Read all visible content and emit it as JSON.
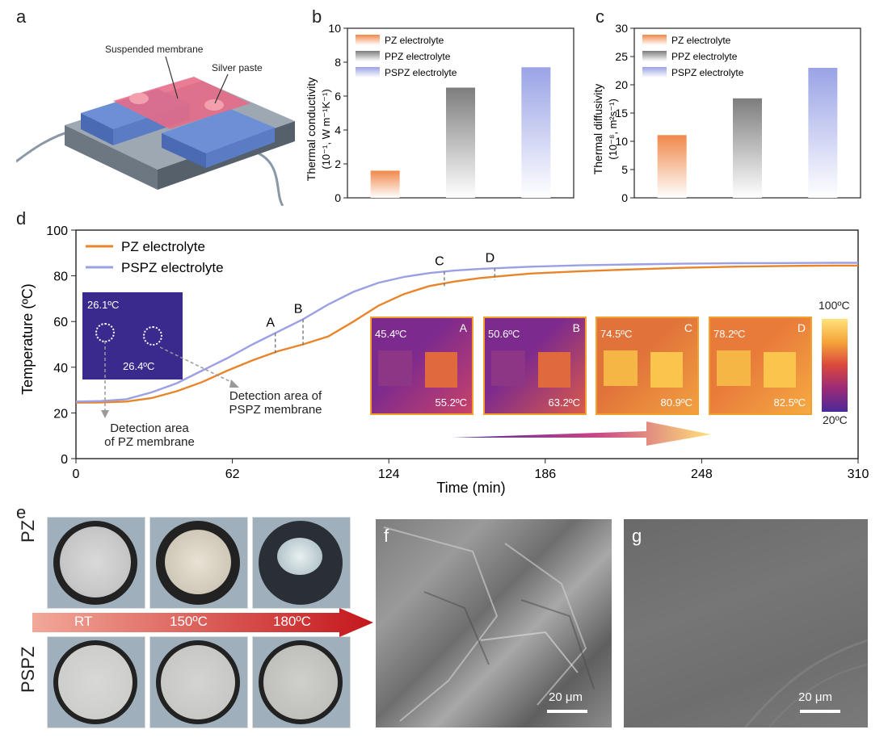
{
  "panels": {
    "a": "a",
    "b": "b",
    "c": "c",
    "d": "d",
    "e": "e",
    "f": "f",
    "g": "g"
  },
  "panel_a": {
    "membrane_label": "Suspended membrane",
    "paste_label": "Silver paste"
  },
  "chart_data": [
    {
      "id": "b",
      "type": "bar",
      "categories": [
        "PZ electrolyte",
        "PPZ electrolyte",
        "PSPZ electrolyte"
      ],
      "values": [
        1.6,
        6.5,
        7.7
      ],
      "ylabel_line1": "Thermal conductivity",
      "ylabel_line2": "(10⁻¹, W m⁻¹K⁻¹)",
      "ylim": [
        0,
        10
      ],
      "yticks": [
        0,
        2,
        4,
        6,
        8,
        10
      ],
      "colors": [
        "#f0884a",
        "#7d7d7d",
        "#9aa3e6"
      ],
      "legend": "top-left"
    },
    {
      "id": "c",
      "type": "bar",
      "categories": [
        "PZ electrolyte",
        "PPZ electrolyte",
        "PSPZ electrolyte"
      ],
      "values": [
        11.1,
        17.6,
        23.0
      ],
      "ylabel_line1": "Thermal diffusivity",
      "ylabel_line2": "(10⁻⁸, m²s⁻¹)",
      "ylim": [
        0,
        30
      ],
      "yticks": [
        0,
        5,
        10,
        15,
        20,
        25,
        30
      ],
      "colors": [
        "#f0884a",
        "#7d7d7d",
        "#9aa3e6"
      ],
      "legend": "top-left"
    },
    {
      "id": "d",
      "type": "line",
      "xlabel": "Time (min)",
      "ylabel": "Temperature (ºC)",
      "xlim": [
        0,
        310
      ],
      "ylim": [
        0,
        100
      ],
      "xticks": [
        0,
        62,
        124,
        186,
        248,
        310
      ],
      "yticks": [
        0,
        20,
        40,
        60,
        80,
        100
      ],
      "series": [
        {
          "name": "PZ electrolyte",
          "color": "#e8852a",
          "x": [
            0,
            10,
            20,
            30,
            40,
            50,
            60,
            70,
            80,
            90,
            100,
            110,
            120,
            130,
            140,
            150,
            160,
            170,
            180,
            200,
            220,
            240,
            260,
            280,
            300,
            310
          ],
          "y": [
            24.5,
            24.6,
            25,
            26.5,
            29.5,
            33.5,
            38.5,
            43,
            47,
            50,
            53.5,
            60,
            67,
            72,
            75.5,
            77.5,
            79,
            80,
            81,
            82,
            82.8,
            83.5,
            84,
            84.3,
            84.5,
            84.5
          ]
        },
        {
          "name": "PSPZ electrolyte",
          "color": "#9aa0e3",
          "x": [
            0,
            10,
            20,
            30,
            40,
            50,
            60,
            70,
            80,
            90,
            100,
            110,
            120,
            130,
            140,
            150,
            160,
            170,
            180,
            200,
            220,
            240,
            260,
            280,
            300,
            310
          ],
          "y": [
            25,
            25.2,
            26,
            29,
            33,
            38.5,
            44,
            50,
            55.5,
            61,
            67.5,
            73,
            77,
            79.5,
            81.2,
            82.3,
            83,
            83.5,
            84,
            84.6,
            85,
            85.3,
            85.5,
            85.6,
            85.7,
            85.7
          ]
        }
      ],
      "markers": [
        {
          "label": "A",
          "x": 79
        },
        {
          "label": "B",
          "x": 90
        },
        {
          "label": "C",
          "x": 146
        },
        {
          "label": "D",
          "x": 166
        }
      ],
      "legend": "top-left"
    }
  ],
  "panel_d": {
    "inset_top_temp": "26.1ºC",
    "inset_bottom_temp": "26.4ºC",
    "detect_pspz_line1": "Detection area of",
    "detect_pspz_line2": "PSPZ membrane",
    "detect_pz_line1": "Detection area",
    "detect_pz_line2": "of PZ membrane",
    "thermal_images": [
      {
        "label": "A",
        "left_temp": "45.4ºC",
        "right_temp": "55.2ºC"
      },
      {
        "label": "B",
        "left_temp": "50.6ºC",
        "right_temp": "63.2ºC"
      },
      {
        "label": "C",
        "left_temp": "74.5ºC",
        "right_temp": "80.9ºC"
      },
      {
        "label": "D",
        "left_temp": "78.2ºC",
        "right_temp": "82.5ºC"
      }
    ],
    "colorbar_max": "100ºC",
    "colorbar_min": "20ºC"
  },
  "panel_e": {
    "row_top": "PZ",
    "row_bottom": "PSPZ",
    "temps": [
      "RT",
      "150ºC",
      "180ºC"
    ]
  },
  "panel_f": {
    "scale": "20 μm"
  },
  "panel_g": {
    "scale": "20 μm"
  }
}
